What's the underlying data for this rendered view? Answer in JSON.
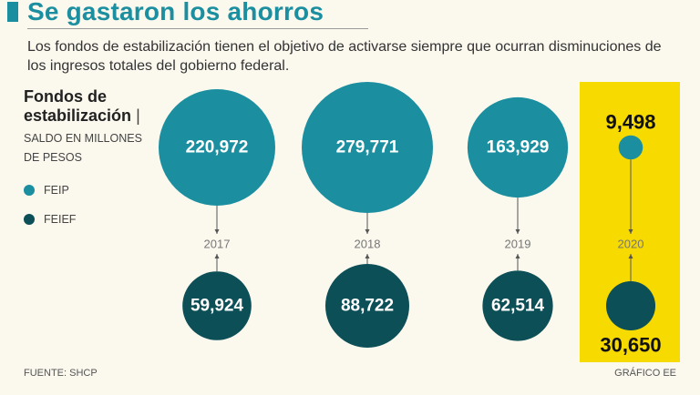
{
  "header": {
    "title": "Se gastaron los ahorros",
    "subtitle": "Los fondos de estabilización tienen el objetivo de activarse siempre que ocurran disminuciones de los ingresos totales del gobierno federal."
  },
  "legend": {
    "heading_line1": "Fondos de",
    "heading_line2": "estabilización",
    "separator": "|",
    "unit_line1": "SALDO EN MILLONES",
    "unit_line2": "DE PESOS",
    "items": [
      {
        "label": "FEIP",
        "color": "#1b8fa0"
      },
      {
        "label": "FEIEF",
        "color": "#0c4f57"
      }
    ]
  },
  "footer": {
    "source": "FUENTE: SHCP",
    "credit": "GRÁFICO EE"
  },
  "colors": {
    "feip": "#1b8fa0",
    "feief": "#0c4f57",
    "highlight": "#f7da00",
    "axis_text": "#777777"
  },
  "chart_data": {
    "type": "bubble",
    "title": "Fondos de estabilización",
    "unit": "Saldo en millones de pesos",
    "categories": [
      "2017",
      "2018",
      "2019",
      "2020"
    ],
    "categories_display": [
      "2017",
      "2018",
      "2019",
      "2020"
    ],
    "highlighted_category": "2020",
    "series": [
      {
        "name": "FEIP",
        "values": [
          220972,
          279771,
          163929,
          9498
        ],
        "labels": [
          "220,972",
          "279,771",
          "163,929",
          "9,498"
        ]
      },
      {
        "name": "FEIEF",
        "values": [
          59924,
          88722,
          62514,
          30650
        ],
        "labels": [
          "59,924",
          "88,722",
          "62,514",
          "30,650"
        ]
      }
    ]
  }
}
